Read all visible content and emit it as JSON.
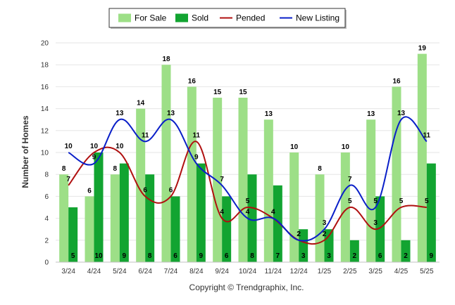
{
  "chart_data": {
    "type": "bar",
    "categories": [
      "3/24",
      "4/24",
      "5/24",
      "6/24",
      "7/24",
      "8/24",
      "9/24",
      "10/24",
      "11/24",
      "12/24",
      "1/25",
      "2/25",
      "3/25",
      "4/25",
      "5/25"
    ],
    "series": [
      {
        "name": "For Sale",
        "type": "bar",
        "color": "#9ddf87",
        "values": [
          8,
          6,
          8,
          14,
          18,
          16,
          15,
          15,
          13,
          10,
          8,
          10,
          13,
          16,
          19
        ]
      },
      {
        "name": "Sold",
        "type": "bar",
        "color": "#12a431",
        "values": [
          5,
          10,
          9,
          8,
          6,
          9,
          6,
          8,
          7,
          3,
          3,
          2,
          6,
          2,
          9
        ]
      },
      {
        "name": "Pended",
        "type": "line",
        "color": "#b01010",
        "values": [
          7,
          10,
          10,
          6,
          6,
          11,
          4,
          5,
          4,
          2,
          2,
          5,
          3,
          5,
          5
        ]
      },
      {
        "name": "New Listing",
        "type": "line",
        "color": "#0a1fc8",
        "values": [
          10,
          9,
          13,
          11,
          13,
          9,
          7,
          4,
          4,
          2,
          3,
          7,
          5,
          13,
          11
        ]
      }
    ],
    "ylabel": "Number of Homes",
    "xlabel": "",
    "ylim": [
      0,
      20
    ],
    "yticks": [
      0,
      2,
      4,
      6,
      8,
      10,
      12,
      14,
      16,
      18,
      20
    ],
    "grid": true,
    "legend": "top-center"
  },
  "credit": "Copyright © Trendgraphix, Inc."
}
